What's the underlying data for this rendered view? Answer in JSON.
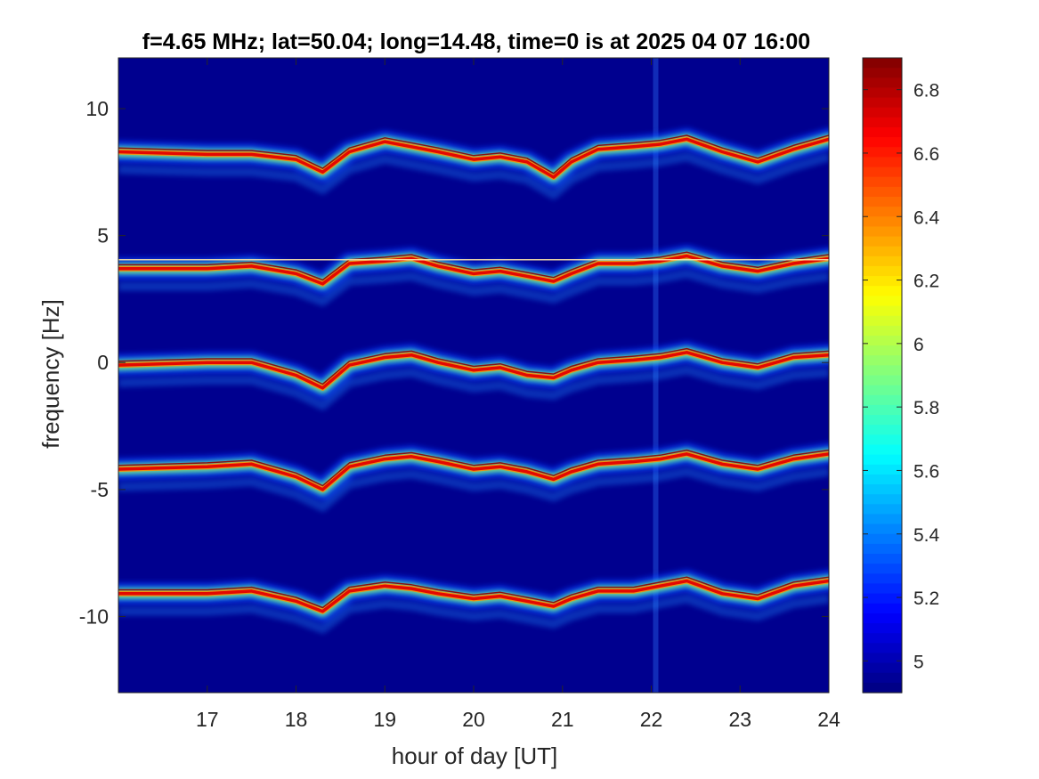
{
  "chart_data": {
    "type": "heatmap",
    "title": "f=4.65 MHz;  lat=50.04; long=14.48, time=0 is at 2025 04 07 16:00",
    "xlabel": "hour of day [UT]",
    "ylabel": "frequency [Hz]",
    "xlim": [
      16.0,
      24.0
    ],
    "ylim": [
      -13.0,
      12.0
    ],
    "x_ticks": [
      17,
      18,
      19,
      20,
      21,
      22,
      23,
      24
    ],
    "x_tick_labels": [
      "17",
      "18",
      "19",
      "20",
      "21",
      "22",
      "23",
      "24"
    ],
    "y_ticks": [
      10,
      5,
      0,
      -5,
      -10
    ],
    "y_tick_labels": [
      "10",
      "5",
      "0",
      "-5",
      "-10"
    ],
    "colormap": "jet",
    "background_color": "#00008f",
    "colorbar": {
      "range": [
        4.9,
        6.9
      ],
      "ticks": [
        6.8,
        6.6,
        6.4,
        6.2,
        6.0,
        5.8,
        5.6,
        5.4,
        5.2,
        5.0
      ],
      "tick_labels": [
        "6.8",
        "6.6",
        "6.4",
        "6.2",
        "6",
        "5.8",
        "5.6",
        "5.4",
        "5.2",
        "5"
      ]
    },
    "traces": [
      {
        "hours": [
          16.0,
          17.0,
          17.5,
          18.0,
          18.3,
          18.6,
          19.0,
          19.3,
          19.6,
          20.0,
          20.3,
          20.6,
          20.9,
          21.1,
          21.4,
          21.8,
          22.1,
          22.4,
          22.8,
          23.2,
          23.6,
          24.0
        ],
        "freq_hz": [
          8.3,
          8.2,
          8.2,
          8.0,
          7.5,
          8.3,
          8.7,
          8.5,
          8.3,
          8.0,
          8.1,
          7.9,
          7.3,
          7.9,
          8.4,
          8.5,
          8.6,
          8.8,
          8.3,
          7.9,
          8.4,
          8.8
        ]
      },
      {
        "hours": [
          16.0,
          17.0,
          17.5,
          18.0,
          18.3,
          18.6,
          19.0,
          19.3,
          19.6,
          20.0,
          20.3,
          20.6,
          20.9,
          21.1,
          21.4,
          21.8,
          22.1,
          22.4,
          22.8,
          23.2,
          23.6,
          24.0
        ],
        "freq_hz": [
          3.7,
          3.7,
          3.8,
          3.5,
          3.1,
          3.9,
          4.0,
          4.1,
          3.8,
          3.5,
          3.6,
          3.4,
          3.2,
          3.5,
          3.9,
          3.9,
          4.0,
          4.2,
          3.8,
          3.6,
          3.9,
          4.1
        ]
      },
      {
        "hours": [
          16.0,
          17.0,
          17.5,
          18.0,
          18.3,
          18.6,
          19.0,
          19.3,
          19.6,
          20.0,
          20.3,
          20.6,
          20.9,
          21.1,
          21.4,
          21.8,
          22.1,
          22.4,
          22.8,
          23.2,
          23.6,
          24.0
        ],
        "freq_hz": [
          -0.1,
          0.0,
          0.0,
          -0.5,
          -1.0,
          -0.1,
          0.2,
          0.3,
          0.0,
          -0.3,
          -0.2,
          -0.5,
          -0.6,
          -0.3,
          0.0,
          0.1,
          0.2,
          0.4,
          0.0,
          -0.2,
          0.2,
          0.3
        ]
      },
      {
        "hours": [
          16.0,
          17.0,
          17.5,
          18.0,
          18.3,
          18.6,
          19.0,
          19.3,
          19.6,
          20.0,
          20.3,
          20.6,
          20.9,
          21.1,
          21.4,
          21.8,
          22.1,
          22.4,
          22.8,
          23.2,
          23.6,
          24.0
        ],
        "freq_hz": [
          -4.2,
          -4.1,
          -4.0,
          -4.5,
          -5.0,
          -4.1,
          -3.8,
          -3.7,
          -3.9,
          -4.2,
          -4.1,
          -4.3,
          -4.6,
          -4.3,
          -4.0,
          -3.9,
          -3.8,
          -3.6,
          -4.0,
          -4.2,
          -3.8,
          -3.6
        ]
      },
      {
        "hours": [
          16.0,
          17.0,
          17.5,
          18.0,
          18.3,
          18.6,
          19.0,
          19.3,
          19.6,
          20.0,
          20.3,
          20.6,
          20.9,
          21.1,
          21.4,
          21.8,
          22.1,
          22.4,
          22.8,
          23.2,
          23.6,
          24.0
        ],
        "freq_hz": [
          -9.1,
          -9.1,
          -9.0,
          -9.4,
          -9.8,
          -9.0,
          -8.8,
          -8.9,
          -9.1,
          -9.3,
          -9.2,
          -9.4,
          -9.6,
          -9.3,
          -9.0,
          -9.0,
          -8.8,
          -8.6,
          -9.1,
          -9.3,
          -8.8,
          -8.6
        ]
      }
    ],
    "narrow_line": {
      "freq_hz": 4.05,
      "x_range": [
        16.0,
        24.0
      ]
    },
    "vertical_noise_band": {
      "hour": 22.05
    }
  }
}
